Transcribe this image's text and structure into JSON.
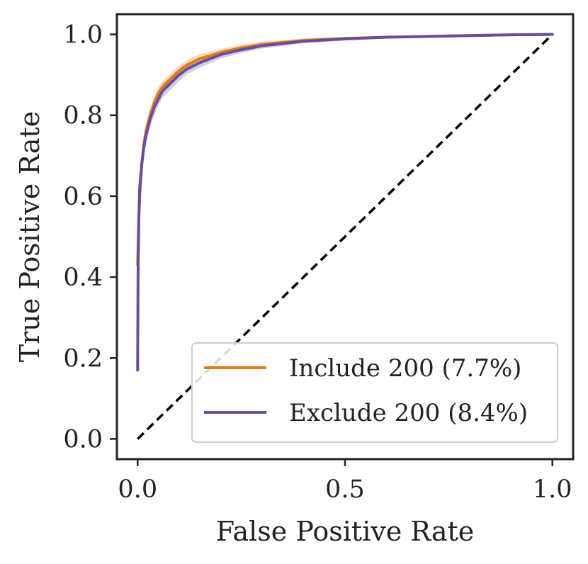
{
  "chart_data": {
    "type": "line",
    "title": "",
    "xlabel": "False Positive Rate",
    "ylabel": "True Positive Rate",
    "xlim": [
      -0.05,
      1.05
    ],
    "ylim": [
      -0.05,
      1.05
    ],
    "xticks": [
      0.0,
      0.5,
      1.0
    ],
    "xtick_labels": [
      "0.0",
      "0.5",
      "1.0"
    ],
    "yticks": [
      0.0,
      0.2,
      0.4,
      0.6,
      0.8,
      1.0
    ],
    "ytick_labels": [
      "0.0",
      "0.2",
      "0.4",
      "0.6",
      "0.8",
      "1.0"
    ],
    "grid": false,
    "legend_position": "lower-right",
    "reference_line": {
      "x": [
        0,
        1
      ],
      "y": [
        0,
        1
      ],
      "style": "dashed",
      "color": "#000000"
    },
    "series": [
      {
        "name": "Include 200 (7.7%)",
        "color": "#e07b10",
        "x": [
          0,
          0.002,
          0.005,
          0.01,
          0.015,
          0.02,
          0.03,
          0.04,
          0.05,
          0.06,
          0.08,
          0.1,
          0.12,
          0.15,
          0.2,
          0.25,
          0.3,
          0.4,
          0.5,
          0.6,
          0.7,
          0.8,
          0.9,
          1.0
        ],
        "y": [
          0.43,
          0.52,
          0.6,
          0.68,
          0.73,
          0.76,
          0.8,
          0.83,
          0.855,
          0.87,
          0.89,
          0.91,
          0.925,
          0.94,
          0.955,
          0.967,
          0.975,
          0.985,
          0.99,
          0.993,
          0.995,
          0.997,
          0.999,
          1.0
        ],
        "band": [
          0.012,
          0.015,
          0.016,
          0.018,
          0.018,
          0.018,
          0.018,
          0.017,
          0.016,
          0.015,
          0.014,
          0.013,
          0.012,
          0.011,
          0.009,
          0.008,
          0.007,
          0.005,
          0.004,
          0.003,
          0.002,
          0.002,
          0.001,
          0.0
        ]
      },
      {
        "name": "Exclude 200 (8.4%)",
        "color": "#6a4c9c",
        "x": [
          0,
          0.001,
          0.003,
          0.005,
          0.01,
          0.015,
          0.02,
          0.03,
          0.04,
          0.05,
          0.06,
          0.08,
          0.1,
          0.12,
          0.15,
          0.2,
          0.25,
          0.3,
          0.4,
          0.5,
          0.6,
          0.7,
          0.8,
          0.9,
          1.0
        ],
        "y": [
          0.17,
          0.4,
          0.55,
          0.62,
          0.68,
          0.72,
          0.75,
          0.79,
          0.82,
          0.84,
          0.86,
          0.88,
          0.9,
          0.915,
          0.93,
          0.95,
          0.962,
          0.972,
          0.983,
          0.989,
          0.993,
          0.995,
          0.997,
          0.999,
          1.0
        ],
        "band": [
          0.03,
          0.02,
          0.02,
          0.02,
          0.02,
          0.02,
          0.02,
          0.02,
          0.019,
          0.018,
          0.017,
          0.016,
          0.015,
          0.013,
          0.012,
          0.01,
          0.008,
          0.007,
          0.005,
          0.004,
          0.003,
          0.002,
          0.002,
          0.001,
          0.0
        ]
      }
    ]
  }
}
